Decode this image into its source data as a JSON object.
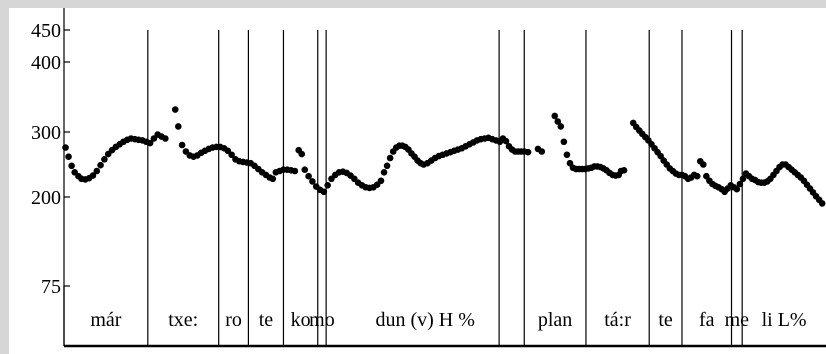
{
  "chart_data": {
    "type": "scatter",
    "title": "",
    "xlabel": "",
    "ylabel": "",
    "ylim": [
      75,
      450
    ],
    "yticks": [
      {
        "value": 450,
        "label": "450"
      },
      {
        "value": 400,
        "label": "400"
      },
      {
        "value": 300,
        "label": "300"
      },
      {
        "value": 200,
        "label": "200"
      },
      {
        "value": 75,
        "label": "75"
      }
    ],
    "xlim": [
      0,
      100
    ],
    "segments": [
      {
        "label": "már",
        "start": 0,
        "end": 11.0
      },
      {
        "label": "txe:",
        "start": 11.0,
        "end": 20.3
      },
      {
        "label": "ro",
        "start": 20.3,
        "end": 24.2
      },
      {
        "label": "te",
        "start": 24.2,
        "end": 28.8
      },
      {
        "label": "ko",
        "start": 28.8,
        "end": 33.3
      },
      {
        "label": "mo",
        "start": 33.3,
        "end": 34.4
      },
      {
        "label": "dun (v) H %",
        "start": 34.4,
        "end": 60.4
      },
      {
        "label": "plan",
        "start": 60.4,
        "end": 68.5
      },
      {
        "label": "tá:r",
        "start": 68.5,
        "end": 76.8
      },
      {
        "label": "te",
        "start": 76.8,
        "end": 81.1
      },
      {
        "label": "fa",
        "start": 81.1,
        "end": 87.6
      },
      {
        "label": "me",
        "start": 87.6,
        "end": 89.0
      },
      {
        "label": "li L%",
        "start": 89.0,
        "end": 100
      }
    ],
    "extra_boundaries": [
      57.1
    ],
    "series": [
      {
        "values": [
          [
            0.2,
            276
          ],
          [
            0.6,
            262
          ],
          [
            1.0,
            248
          ],
          [
            1.4,
            238
          ],
          [
            1.9,
            232
          ],
          [
            2.3,
            228
          ],
          [
            2.8,
            227
          ],
          [
            3.3,
            229
          ],
          [
            3.8,
            233
          ],
          [
            4.3,
            240
          ],
          [
            4.8,
            249
          ],
          [
            5.3,
            258
          ],
          [
            5.8,
            266
          ],
          [
            6.3,
            272
          ],
          [
            6.8,
            277
          ],
          [
            7.3,
            281
          ],
          [
            7.8,
            285
          ],
          [
            8.3,
            288
          ],
          [
            8.8,
            290
          ],
          [
            9.3,
            289
          ],
          [
            9.8,
            288
          ],
          [
            10.3,
            287
          ],
          [
            10.8,
            285
          ],
          [
            11.3,
            283
          ],
          [
            11.8,
            290
          ],
          [
            12.3,
            296
          ],
          [
            12.8,
            293
          ],
          [
            13.3,
            290
          ],
          [
            14.6,
            332
          ],
          [
            15.0,
            308
          ],
          [
            15.5,
            280
          ],
          [
            16.0,
            270
          ],
          [
            16.5,
            264
          ],
          [
            17.0,
            262
          ],
          [
            17.5,
            264
          ],
          [
            18.0,
            268
          ],
          [
            18.5,
            271
          ],
          [
            19.0,
            274
          ],
          [
            19.5,
            276
          ],
          [
            20.0,
            277
          ],
          [
            20.5,
            277
          ],
          [
            21.0,
            275
          ],
          [
            21.5,
            271
          ],
          [
            22.0,
            265
          ],
          [
            22.5,
            258
          ],
          [
            23.0,
            255
          ],
          [
            23.5,
            254
          ],
          [
            24.0,
            253
          ],
          [
            24.5,
            252
          ],
          [
            25.0,
            248
          ],
          [
            25.5,
            243
          ],
          [
            26.0,
            238
          ],
          [
            26.5,
            234
          ],
          [
            27.0,
            230
          ],
          [
            27.4,
            228
          ],
          [
            27.8,
            238
          ],
          [
            28.3,
            240
          ],
          [
            28.8,
            242
          ],
          [
            29.3,
            242
          ],
          [
            29.8,
            241
          ],
          [
            30.3,
            240
          ],
          [
            30.8,
            272
          ],
          [
            31.2,
            266
          ],
          [
            31.6,
            242
          ],
          [
            32.1,
            232
          ],
          [
            32.6,
            224
          ],
          [
            33.1,
            216
          ],
          [
            33.6,
            211
          ],
          [
            34.1,
            208
          ],
          [
            34.6,
            218
          ],
          [
            35.1,
            228
          ],
          [
            35.6,
            234
          ],
          [
            36.1,
            238
          ],
          [
            36.6,
            239
          ],
          [
            37.1,
            237
          ],
          [
            37.6,
            233
          ],
          [
            38.1,
            228
          ],
          [
            38.6,
            222
          ],
          [
            39.1,
            218
          ],
          [
            39.6,
            215
          ],
          [
            40.1,
            214
          ],
          [
            40.6,
            215
          ],
          [
            41.1,
            219
          ],
          [
            41.6,
            225
          ],
          [
            42.0,
            238
          ],
          [
            42.4,
            248
          ],
          [
            42.8,
            260
          ],
          [
            43.2,
            270
          ],
          [
            43.6,
            276
          ],
          [
            44.0,
            279
          ],
          [
            44.4,
            279
          ],
          [
            44.8,
            277
          ],
          [
            45.2,
            273
          ],
          [
            45.6,
            267
          ],
          [
            46.0,
            262
          ],
          [
            46.4,
            256
          ],
          [
            46.8,
            252
          ],
          [
            47.2,
            250
          ],
          [
            47.7,
            252
          ],
          [
            48.2,
            256
          ],
          [
            48.7,
            260
          ],
          [
            49.2,
            263
          ],
          [
            49.7,
            265
          ],
          [
            50.2,
            267
          ],
          [
            50.7,
            269
          ],
          [
            51.2,
            271
          ],
          [
            51.7,
            273
          ],
          [
            52.2,
            275
          ],
          [
            52.7,
            278
          ],
          [
            53.2,
            281
          ],
          [
            53.7,
            284
          ],
          [
            54.2,
            287
          ],
          [
            54.7,
            289
          ],
          [
            55.2,
            290
          ],
          [
            55.7,
            291
          ],
          [
            56.2,
            289
          ],
          [
            56.7,
            287
          ],
          [
            57.2,
            285
          ],
          [
            57.6,
            290
          ],
          [
            58.0,
            286
          ],
          [
            58.4,
            278
          ],
          [
            58.8,
            273
          ],
          [
            59.2,
            270
          ],
          [
            59.6,
            270
          ],
          [
            60.0,
            270
          ],
          [
            60.4,
            270
          ],
          [
            60.9,
            269
          ],
          [
            62.2,
            274
          ],
          [
            62.7,
            270
          ],
          [
            64.4,
            323
          ],
          [
            64.8,
            315
          ],
          [
            65.2,
            308
          ],
          [
            65.6,
            285
          ],
          [
            66.0,
            265
          ],
          [
            66.4,
            252
          ],
          [
            66.8,
            245
          ],
          [
            67.2,
            243
          ],
          [
            67.6,
            243
          ],
          [
            68.0,
            243
          ],
          [
            68.4,
            243
          ],
          [
            68.8,
            244
          ],
          [
            69.2,
            245
          ],
          [
            69.6,
            247
          ],
          [
            70.0,
            247
          ],
          [
            70.4,
            246
          ],
          [
            70.8,
            244
          ],
          [
            71.2,
            241
          ],
          [
            71.6,
            237
          ],
          [
            72.0,
            234
          ],
          [
            72.4,
            233
          ],
          [
            72.8,
            234
          ],
          [
            73.1,
            240
          ],
          [
            73.5,
            241
          ],
          [
            74.7,
            313
          ],
          [
            75.1,
            307
          ],
          [
            75.5,
            302
          ],
          [
            75.9,
            297
          ],
          [
            76.3,
            292
          ],
          [
            76.7,
            287
          ],
          [
            77.1,
            281
          ],
          [
            77.5,
            275
          ],
          [
            77.9,
            269
          ],
          [
            78.3,
            263
          ],
          [
            78.7,
            256
          ],
          [
            79.1,
            250
          ],
          [
            79.5,
            244
          ],
          [
            79.9,
            240
          ],
          [
            80.3,
            236
          ],
          [
            80.7,
            234
          ],
          [
            81.1,
            234
          ],
          [
            81.5,
            232
          ],
          [
            81.9,
            228
          ],
          [
            82.3,
            230
          ],
          [
            82.7,
            234
          ],
          [
            83.1,
            232
          ],
          [
            83.5,
            255
          ],
          [
            83.9,
            250
          ],
          [
            84.3,
            232
          ],
          [
            84.7,
            225
          ],
          [
            85.1,
            220
          ],
          [
            85.5,
            217
          ],
          [
            85.9,
            215
          ],
          [
            86.3,
            212
          ],
          [
            86.7,
            208
          ],
          [
            87.1,
            213
          ],
          [
            87.5,
            218
          ],
          [
            87.9,
            215
          ],
          [
            88.3,
            212
          ],
          [
            88.7,
            220
          ],
          [
            89.1,
            228
          ],
          [
            89.5,
            236
          ],
          [
            89.9,
            232
          ],
          [
            90.3,
            228
          ],
          [
            90.7,
            226
          ],
          [
            91.1,
            223
          ],
          [
            91.5,
            222
          ],
          [
            91.9,
            222
          ],
          [
            92.3,
            224
          ],
          [
            92.7,
            228
          ],
          [
            93.1,
            234
          ],
          [
            93.5,
            240
          ],
          [
            93.9,
            246
          ],
          [
            94.3,
            250
          ],
          [
            94.7,
            250
          ],
          [
            95.1,
            246
          ],
          [
            95.5,
            242
          ],
          [
            95.9,
            238
          ],
          [
            96.3,
            234
          ],
          [
            96.7,
            230
          ],
          [
            97.1,
            225
          ],
          [
            97.5,
            219
          ],
          [
            97.9,
            213
          ],
          [
            98.3,
            207
          ],
          [
            98.7,
            201
          ],
          [
            99.1,
            196
          ],
          [
            99.5,
            191
          ],
          [
            99.9,
            188
          ],
          [
            100.3,
            186
          ]
        ]
      }
    ],
    "grid": false,
    "legend": "none"
  }
}
